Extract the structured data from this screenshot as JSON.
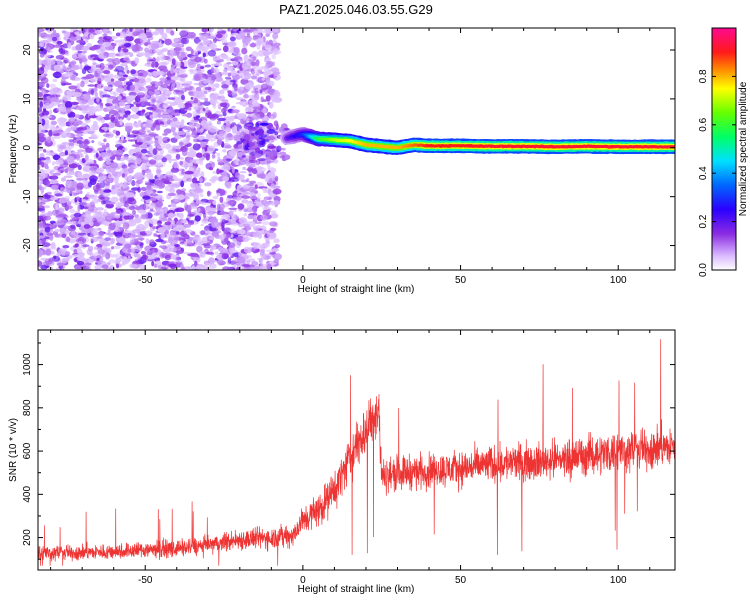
{
  "figure_title": "PAZ1.2025.046.03.55.G29",
  "chart_data": [
    {
      "type": "heatmap",
      "title": "PAZ1.2025.046.03.55.G29",
      "xlabel": "Height of straight line (km)",
      "ylabel": "Frequency (Hz)",
      "xlim": [
        -84,
        118
      ],
      "ylim": [
        -25,
        24.5
      ],
      "xticks": [
        -50,
        0,
        50,
        100
      ],
      "yticks": [
        -20,
        -10,
        0,
        10,
        20
      ],
      "grid": false,
      "colorbar": {
        "label": "Normalized spectral amplitude",
        "range": [
          0,
          1
        ],
        "ticks": [
          0.0,
          0.2,
          0.4,
          0.6,
          0.8
        ],
        "tick_labels": [
          "0.0",
          "0.2",
          "0.4",
          "0.6",
          "0.8"
        ],
        "colormap": "rainbow (white-violet-blue-cyan-green-yellow-red-magenta)"
      },
      "regions": [
        {
          "x_range": [
            -84,
            -20
          ],
          "description": "scattered noise speckle",
          "amplitude": [
            0.05,
            0.2
          ],
          "y_range": [
            -25,
            24.5
          ]
        },
        {
          "x_range": [
            -20,
            -8
          ],
          "description": "fading noise speckle",
          "amplitude": [
            0.05,
            0.15
          ],
          "y_range": [
            -25,
            24.5
          ]
        },
        {
          "x_range": [
            -19,
            -5
          ],
          "description": "noise cluster near 0 Hz",
          "amplitude": [
            0.1,
            0.25
          ],
          "y_range": [
            -3,
            5
          ]
        }
      ],
      "carrier_line": {
        "x": [
          -5,
          0,
          5,
          10,
          15,
          20,
          25,
          30,
          35,
          40,
          50,
          60,
          70,
          80,
          90,
          100,
          110,
          118
        ],
        "frequency": [
          2.0,
          2.8,
          1.8,
          1.6,
          1.4,
          0.6,
          0.3,
          0.0,
          0.6,
          0.4,
          0.4,
          0.3,
          0.3,
          0.2,
          0.3,
          0.2,
          0.2,
          0.2
        ],
        "amplitude": [
          0.2,
          0.3,
          0.6,
          0.7,
          0.75,
          0.8,
          0.8,
          0.8,
          0.85,
          0.9,
          0.9,
          0.92,
          0.92,
          0.92,
          0.92,
          0.92,
          0.92,
          0.92
        ]
      }
    },
    {
      "type": "line",
      "title": "",
      "xlabel": "Height of straight line (km)",
      "ylabel": "SNR (10 * v/v)",
      "xlim": [
        -84,
        118
      ],
      "ylim": [
        50,
        1160
      ],
      "xticks": [
        -50,
        0,
        50,
        100
      ],
      "yticks": [
        200,
        400,
        600,
        800,
        1000
      ],
      "grid": false,
      "series": [
        {
          "color": "#ee3333",
          "x": [
            -84,
            -70,
            -60,
            -50,
            -40,
            -30,
            -20,
            -10,
            -3,
            0,
            5,
            10,
            15,
            20,
            24,
            25,
            30,
            40,
            50,
            60,
            70,
            80,
            90,
            100,
            110,
            118
          ],
          "mean": [
            130,
            130,
            135,
            145,
            150,
            165,
            190,
            200,
            210,
            280,
            330,
            420,
            570,
            700,
            800,
            480,
            500,
            510,
            520,
            540,
            550,
            560,
            580,
            600,
            610,
            620
          ],
          "spread": [
            60,
            60,
            60,
            65,
            65,
            70,
            80,
            85,
            90,
            110,
            130,
            150,
            170,
            200,
            250,
            130,
            130,
            130,
            135,
            140,
            140,
            145,
            150,
            155,
            160,
            160
          ]
        }
      ]
    }
  ]
}
